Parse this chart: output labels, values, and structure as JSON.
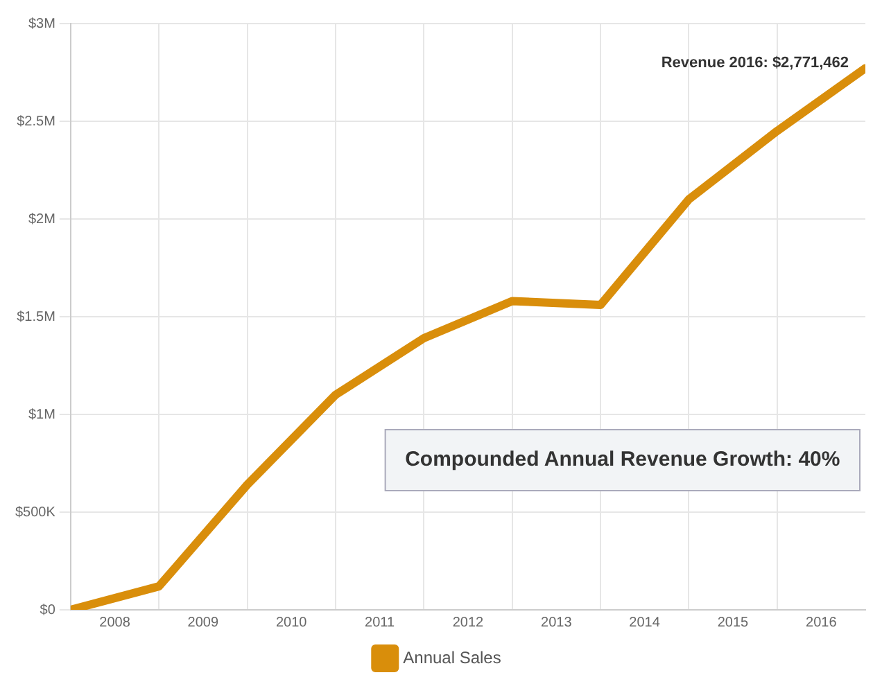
{
  "chart_data": {
    "type": "line",
    "x": [
      2007,
      2008,
      2009,
      2010,
      2011,
      2012,
      2013,
      2014,
      2015,
      2016
    ],
    "series": [
      {
        "name": "Annual Sales",
        "color": "#d98e0b",
        "values": [
          0,
          120000,
          640000,
          1100000,
          1390000,
          1580000,
          1560000,
          2100000,
          2450000,
          2771462
        ]
      }
    ],
    "xlim": [
      2007,
      2016
    ],
    "xticks": [
      {
        "value": 2007.5,
        "label": "2008"
      },
      {
        "value": 2008,
        "label": null
      },
      {
        "value": 2008.5,
        "label": "2009"
      },
      {
        "value": 2009,
        "label": null
      },
      {
        "value": 2009.5,
        "label": "2010"
      },
      {
        "value": 2010,
        "label": null
      },
      {
        "value": 2010.5,
        "label": "2011"
      },
      {
        "value": 2011,
        "label": null
      },
      {
        "value": 2011.5,
        "label": "2012"
      },
      {
        "value": 2012,
        "label": null
      },
      {
        "value": 2012.5,
        "label": "2013"
      },
      {
        "value": 2013,
        "label": null
      },
      {
        "value": 2013.5,
        "label": "2014"
      },
      {
        "value": 2014,
        "label": null
      },
      {
        "value": 2014.5,
        "label": "2015"
      },
      {
        "value": 2015,
        "label": null
      },
      {
        "value": 2015.5,
        "label": "2016"
      }
    ],
    "ylim": [
      0,
      3000000
    ],
    "yticks": [
      {
        "value": 0,
        "label": "$0"
      },
      {
        "value": 500000,
        "label": "$500K"
      },
      {
        "value": 1000000,
        "label": "$1M"
      },
      {
        "value": 1500000,
        "label": "$1.5M"
      },
      {
        "value": 2000000,
        "label": "$2M"
      },
      {
        "value": 2500000,
        "label": "$2.5M"
      },
      {
        "value": 3000000,
        "label": "$3M"
      }
    ],
    "grid": true,
    "legend": "bottom",
    "marker": "none",
    "line_style": "solid",
    "annotations": [
      {
        "text": "Revenue 2016: $2,771,462",
        "x": 2016,
        "y": 2771462
      },
      "Compounded Annual Revenue Growth: 40%"
    ]
  }
}
